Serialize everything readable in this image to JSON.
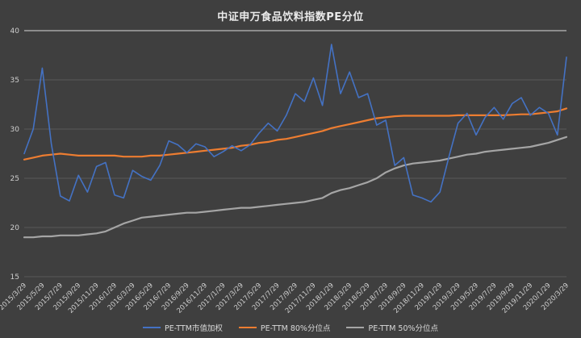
{
  "title": "中证申万食品饮料指数PE分位",
  "colors": {
    "background": "#3f3f3f",
    "grid": "#5a5a5a",
    "grid_major": "#d9d9d9",
    "axis_text": "#cfcfcf",
    "title_text": "#eaeaea",
    "series_blue": "#4472C4",
    "series_orange": "#ED7D31",
    "series_gray": "#A5A5A5"
  },
  "chart_data": {
    "type": "line",
    "title": "中证申万食品饮料指数PE分位",
    "xlabel": "",
    "ylabel": "",
    "ylim": [
      15,
      40
    ],
    "yticks": [
      15,
      20,
      25,
      30,
      35,
      40
    ],
    "grid": true,
    "legend_position": "bottom",
    "x": [
      "2015/3/29",
      "2015/4/29",
      "2015/5/29",
      "2015/6/29",
      "2015/7/29",
      "2015/8/29",
      "2015/9/29",
      "2015/10/29",
      "2015/11/29",
      "2015/12/29",
      "2016/1/29",
      "2016/2/29",
      "2016/3/29",
      "2016/4/29",
      "2016/5/29",
      "2016/6/29",
      "2016/7/29",
      "2016/8/29",
      "2016/9/29",
      "2016/10/29",
      "2016/11/29",
      "2016/12/29",
      "2017/1/29",
      "2017/2/28",
      "2017/3/29",
      "2017/4/29",
      "2017/5/29",
      "2017/6/29",
      "2017/7/29",
      "2017/8/29",
      "2017/9/29",
      "2017/10/29",
      "2017/11/29",
      "2017/12/29",
      "2018/1/29",
      "2018/2/28",
      "2018/3/29",
      "2018/4/29",
      "2018/5/29",
      "2018/6/29",
      "2018/7/29",
      "2018/8/29",
      "2018/9/29",
      "2018/10/29",
      "2018/11/29",
      "2018/12/29",
      "2019/1/29",
      "2019/2/28",
      "2019/3/29",
      "2019/4/29",
      "2019/5/29",
      "2019/6/29",
      "2019/7/29",
      "2019/8/29",
      "2019/9/29",
      "2019/10/29",
      "2019/11/29",
      "2019/12/29",
      "2020/1/29",
      "2020/2/29",
      "2020/3/29"
    ],
    "xtick_labels": [
      "2015/3/29",
      "2015/5/29",
      "2015/7/29",
      "2015/9/29",
      "2015/11/29",
      "2016/1/29",
      "2016/3/29",
      "2016/5/29",
      "2016/7/29",
      "2016/9/29",
      "2016/11/29",
      "2017/1/29",
      "2017/3/29",
      "2017/5/29",
      "2017/7/29",
      "2017/9/29",
      "2017/11/29",
      "2018/1/29",
      "2018/3/29",
      "2018/5/29",
      "2018/7/29",
      "2018/9/29",
      "2018/11/29",
      "2019/1/29",
      "2019/3/29",
      "2019/5/29",
      "2019/7/29",
      "2019/9/29",
      "2019/11/29",
      "2020/1/29",
      "2020/3/29"
    ],
    "series": [
      {
        "name": "PE-TTM市值加权",
        "color": "#4472C4",
        "values": [
          27.5,
          30.0,
          36.2,
          28.5,
          23.2,
          22.7,
          25.3,
          23.6,
          26.2,
          26.6,
          23.3,
          23.0,
          25.8,
          25.2,
          24.8,
          26.3,
          28.8,
          28.4,
          27.6,
          28.5,
          28.2,
          27.2,
          27.7,
          28.3,
          27.8,
          28.4,
          29.6,
          30.6,
          29.8,
          31.4,
          33.6,
          32.8,
          35.2,
          32.4,
          38.6,
          33.6,
          35.8,
          33.2,
          33.6,
          30.4,
          30.9,
          26.3,
          27.1,
          23.3,
          23.0,
          22.6,
          23.6,
          27.2,
          30.6,
          31.6,
          29.4,
          31.2,
          32.2,
          31.0,
          32.6,
          33.2,
          31.4,
          32.2,
          31.6,
          29.4,
          37.3
        ]
      },
      {
        "name": "PE-TTM 80%分位点",
        "color": "#ED7D31",
        "values": [
          26.9,
          27.1,
          27.3,
          27.4,
          27.5,
          27.4,
          27.3,
          27.3,
          27.3,
          27.3,
          27.3,
          27.2,
          27.2,
          27.2,
          27.3,
          27.3,
          27.4,
          27.5,
          27.6,
          27.7,
          27.8,
          27.9,
          28.0,
          28.1,
          28.3,
          28.4,
          28.6,
          28.7,
          28.9,
          29.0,
          29.2,
          29.4,
          29.6,
          29.8,
          30.1,
          30.3,
          30.5,
          30.7,
          30.9,
          31.1,
          31.2,
          31.3,
          31.35,
          31.35,
          31.35,
          31.35,
          31.35,
          31.35,
          31.4,
          31.4,
          31.4,
          31.4,
          31.4,
          31.4,
          31.45,
          31.5,
          31.5,
          31.6,
          31.7,
          31.8,
          32.1
        ]
      },
      {
        "name": "PE-TTM 50%分位点",
        "color": "#A5A5A5",
        "values": [
          19.0,
          19.0,
          19.1,
          19.1,
          19.2,
          19.2,
          19.2,
          19.3,
          19.4,
          19.6,
          20.0,
          20.4,
          20.7,
          21.0,
          21.1,
          21.2,
          21.3,
          21.4,
          21.5,
          21.5,
          21.6,
          21.7,
          21.8,
          21.9,
          22.0,
          22.0,
          22.1,
          22.2,
          22.3,
          22.4,
          22.5,
          22.6,
          22.8,
          23.0,
          23.5,
          23.8,
          24.0,
          24.3,
          24.6,
          25.0,
          25.6,
          26.0,
          26.3,
          26.5,
          26.6,
          26.7,
          26.8,
          27.0,
          27.2,
          27.4,
          27.5,
          27.7,
          27.8,
          27.9,
          28.0,
          28.1,
          28.2,
          28.4,
          28.6,
          28.9,
          29.2
        ]
      }
    ]
  }
}
